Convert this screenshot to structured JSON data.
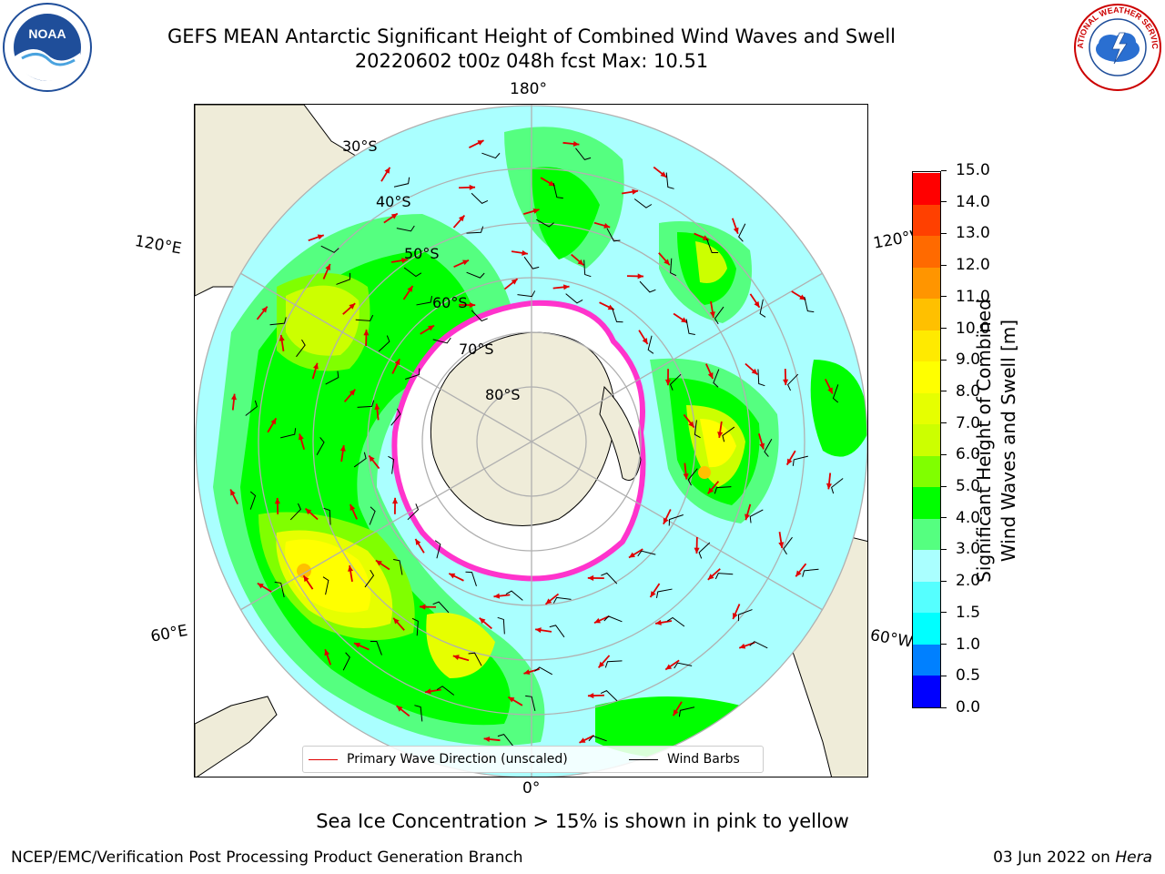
{
  "title": {
    "line1": "GEFS MEAN Antarctic Significant Height of Combined Wind Waves and Swell",
    "line2": "20220602 t00z 048h fcst   Max: 10.51"
  },
  "logos": {
    "left": {
      "name": "noaa-logo",
      "text": "NOAA",
      "ring_text": "NATIONAL OCEANIC AND ATMOSPHERIC ADMINISTRATION · U.S. DEPARTMENT OF COMMERCE"
    },
    "right": {
      "name": "nws-logo",
      "ring_text": "NATIONAL WEATHER SERVICE"
    }
  },
  "map": {
    "projection": "south-polar-stereographic",
    "longitude_labels": {
      "top": "180°",
      "bottom": "0°",
      "upper_left": "120°E",
      "lower_left": "60°E",
      "upper_right": "120°W",
      "lower_right": "60°W"
    },
    "latitude_labels": [
      "30°S",
      "40°S",
      "50°S",
      "60°S",
      "70°S",
      "80°S"
    ],
    "colors": {
      "land": "#efecd9",
      "ocean_low": "#aaffff",
      "ice_edge": "#ff33cc",
      "wave_arrow": "#e00000",
      "wind_barb": "#000000",
      "grid": "#b0b0b0"
    }
  },
  "legend": {
    "wave_direction": "Primary Wave Direction (unscaled)",
    "wind_barbs": "Wind Barbs"
  },
  "colorbar": {
    "label_line1": "Significant Height of Combined",
    "label_line2": "Wind Waves and Swell [m]",
    "unit": "m",
    "ticks": [
      "15.0",
      "14.0",
      "13.0",
      "12.0",
      "11.0",
      "10.0",
      "9.0",
      "8.0",
      "7.0",
      "6.0",
      "5.0",
      "4.0",
      "3.0",
      "2.0",
      "1.5",
      "1.0",
      "0.5",
      "0.0"
    ],
    "levels": [
      {
        "min": 0.0,
        "max": 0.5,
        "color": "#0000ff"
      },
      {
        "min": 0.5,
        "max": 1.0,
        "color": "#0080ff"
      },
      {
        "min": 1.0,
        "max": 1.5,
        "color": "#00ffff"
      },
      {
        "min": 1.5,
        "max": 2.0,
        "color": "#55ffff"
      },
      {
        "min": 2.0,
        "max": 3.0,
        "color": "#aaffff"
      },
      {
        "min": 3.0,
        "max": 4.0,
        "color": "#55ff80"
      },
      {
        "min": 4.0,
        "max": 5.0,
        "color": "#00ff00"
      },
      {
        "min": 5.0,
        "max": 6.0,
        "color": "#80ff00"
      },
      {
        "min": 6.0,
        "max": 7.0,
        "color": "#ccff00"
      },
      {
        "min": 7.0,
        "max": 8.0,
        "color": "#e6ff00"
      },
      {
        "min": 8.0,
        "max": 9.0,
        "color": "#ffff00"
      },
      {
        "min": 9.0,
        "max": 10.0,
        "color": "#ffea00"
      },
      {
        "min": 10.0,
        "max": 11.0,
        "color": "#ffc000"
      },
      {
        "min": 11.0,
        "max": 12.0,
        "color": "#ff9500"
      },
      {
        "min": 12.0,
        "max": 13.0,
        "color": "#ff6a00"
      },
      {
        "min": 13.0,
        "max": 14.0,
        "color": "#ff4000"
      },
      {
        "min": 14.0,
        "max": 15.0,
        "color": "#ff0000"
      }
    ]
  },
  "notes": {
    "sea_ice": "Sea Ice Concentration > 15% is shown in pink to yellow"
  },
  "footer": {
    "left": "NCEP/EMC/Verification Post Processing Product Generation Branch",
    "right_date": "03 Jun 2022 on",
    "right_host": "Hera"
  }
}
